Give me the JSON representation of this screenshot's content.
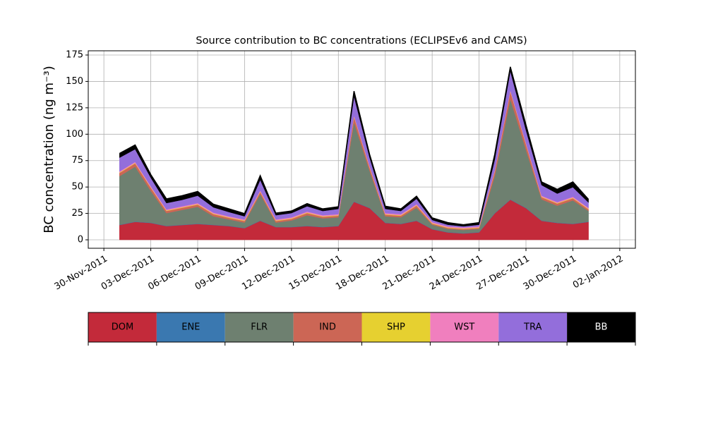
{
  "chart_data": {
    "type": "stacked_area",
    "title": "Source contribution to BC concentrations (ECLIPSEv6 and CAMS)",
    "y_label": "BC concentration (ng m⁻³)",
    "x": [
      "2011-12-01",
      "2011-12-02",
      "2011-12-03",
      "2011-12-04",
      "2011-12-05",
      "2011-12-06",
      "2011-12-07",
      "2011-12-08",
      "2011-12-09",
      "2011-12-10",
      "2011-12-11",
      "2011-12-12",
      "2011-12-13",
      "2011-12-14",
      "2011-12-15",
      "2011-12-16",
      "2011-12-17",
      "2011-12-18",
      "2011-12-19",
      "2011-12-20",
      "2011-12-21",
      "2011-12-22",
      "2011-12-23",
      "2011-12-24",
      "2011-12-25",
      "2011-12-26",
      "2011-12-27",
      "2011-12-28",
      "2011-12-29",
      "2011-12-30",
      "2011-12-31"
    ],
    "series": [
      {
        "name": "DOM",
        "color": "#c32a3a",
        "values": [
          14,
          17,
          16,
          13,
          14,
          15,
          14,
          13,
          11,
          18,
          12,
          12,
          13,
          12,
          13,
          36,
          30,
          16,
          15,
          18,
          10,
          7,
          6,
          7,
          25,
          38,
          30,
          18,
          16,
          15,
          17
        ]
      },
      {
        "name": "ENE",
        "color": "#3a78b0",
        "values": [
          0.3,
          0.3,
          0.3,
          0.3,
          0.3,
          0.3,
          0.3,
          0.3,
          0.3,
          0.3,
          0.3,
          0.3,
          0.3,
          0.3,
          0.3,
          0.3,
          0.3,
          0.3,
          0.3,
          0.3,
          0.3,
          0.3,
          0.3,
          0.3,
          0.3,
          0.3,
          0.3,
          0.3,
          0.3,
          0.3,
          0.3
        ]
      },
      {
        "name": "FLR",
        "color": "#6e8070",
        "values": [
          46,
          52,
          30,
          12,
          14,
          16,
          8,
          6,
          5,
          25,
          4,
          6,
          10,
          8,
          8,
          75,
          35,
          6,
          6,
          12,
          4,
          3,
          3,
          3,
          35,
          95,
          55,
          20,
          16,
          22,
          10
        ]
      },
      {
        "name": "IND",
        "color": "#cc6655",
        "values": [
          3,
          3,
          3,
          2,
          2,
          2,
          2,
          1.5,
          1.5,
          2,
          1.5,
          1.5,
          2,
          1.5,
          1.5,
          5,
          3,
          1.5,
          1.5,
          2,
          1,
          1,
          1,
          1,
          4,
          7,
          5,
          2,
          2,
          2,
          1.5
        ]
      },
      {
        "name": "SHP",
        "color": "#e6d030",
        "values": [
          0.5,
          0.5,
          0.5,
          0.5,
          0.5,
          0.5,
          0.5,
          0.5,
          0.5,
          0.5,
          0.5,
          0.5,
          0.5,
          0.5,
          0.5,
          0.5,
          0.5,
          0.5,
          0.5,
          0.5,
          0.5,
          0.5,
          0.5,
          0.5,
          0.5,
          0.5,
          0.5,
          0.5,
          0.5,
          0.5,
          0.5
        ]
      },
      {
        "name": "WST",
        "color": "#f07fbe",
        "values": [
          1,
          1,
          1,
          1,
          1,
          1,
          1,
          1,
          1,
          1,
          1,
          1,
          1,
          1,
          1,
          1,
          1,
          1,
          1,
          1,
          1,
          1,
          1,
          1,
          1,
          1,
          1,
          1,
          1,
          1,
          1
        ]
      },
      {
        "name": "TRA",
        "color": "#936edb",
        "values": [
          13,
          12,
          8,
          6,
          6,
          7,
          5,
          4,
          3,
          10,
          4,
          4,
          5,
          4,
          5,
          18,
          8,
          4,
          3,
          5,
          2,
          1.5,
          1,
          1.5,
          10,
          18,
          12,
          10,
          8,
          9,
          5
        ]
      },
      {
        "name": "BB",
        "color": "#000000",
        "values": [
          4,
          4,
          3,
          4,
          4,
          4,
          3,
          3,
          2.5,
          4,
          2,
          2,
          2.5,
          2,
          2,
          5,
          3,
          2.5,
          2,
          2.5,
          2,
          2,
          1.5,
          2,
          5,
          4,
          5,
          3,
          4,
          5,
          3
        ]
      }
    ],
    "xlim": [
      "2011-11-29",
      "2012-01-03"
    ],
    "ylim": [
      -8,
      179
    ],
    "xticks": [
      {
        "value": "2011-11-30",
        "label": "30-Nov-2011"
      },
      {
        "value": "2011-12-03",
        "label": "03-Dec-2011"
      },
      {
        "value": "2011-12-06",
        "label": "06-Dec-2011"
      },
      {
        "value": "2011-12-09",
        "label": "09-Dec-2011"
      },
      {
        "value": "2011-12-12",
        "label": "12-Dec-2011"
      },
      {
        "value": "2011-12-15",
        "label": "15-Dec-2011"
      },
      {
        "value": "2011-12-18",
        "label": "18-Dec-2011"
      },
      {
        "value": "2011-12-21",
        "label": "21-Dec-2011"
      },
      {
        "value": "2011-12-24",
        "label": "24-Dec-2011"
      },
      {
        "value": "2011-12-27",
        "label": "27-Dec-2011"
      },
      {
        "value": "2011-12-30",
        "label": "30-Dec-2011"
      },
      {
        "value": "2012-01-02",
        "label": "02-Jan-2012"
      }
    ],
    "yticks": [
      0,
      25,
      50,
      75,
      100,
      125,
      150,
      175
    ],
    "grid": true
  }
}
